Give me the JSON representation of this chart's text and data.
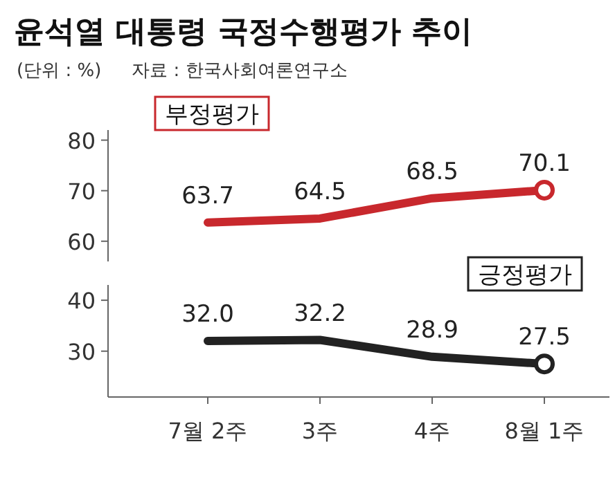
{
  "chart_data": [
    {
      "type": "line",
      "title": "윤석열 대통령 국정수행평가 추이",
      "subtitle": "(단위 : %)",
      "annotations": [
        "자료 : 한국사회여론연구소"
      ],
      "series": [
        {
          "name": "부정평가",
          "color": "#c8282d",
          "values": [
            63.7,
            64.5,
            68.5,
            70.1
          ],
          "value_labels": [
            "63.7",
            "64.5",
            "68.5",
            "70.1"
          ]
        }
      ],
      "ylim": [
        56,
        82
      ],
      "yticks": [
        60,
        70,
        80
      ],
      "tick_labels": "y"
    },
    {
      "type": "line",
      "categories": [
        "7월 2주",
        "3주",
        "4주",
        "8월 1주"
      ],
      "series": [
        {
          "name": "긍정평가",
          "color": "#222222",
          "values": [
            32.0,
            32.2,
            28.9,
            27.5
          ],
          "value_labels": [
            "32.0",
            "32.2",
            "28.9",
            "27.5"
          ]
        }
      ],
      "ylim": [
        21,
        43
      ],
      "yticks": [
        30,
        40
      ]
    }
  ]
}
